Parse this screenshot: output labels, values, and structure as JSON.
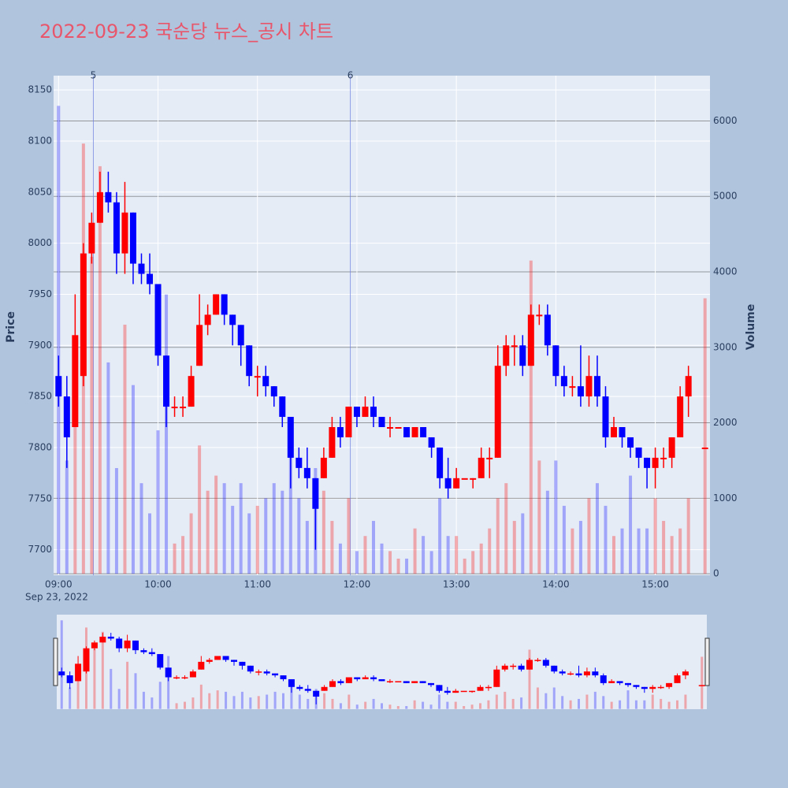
{
  "chart_data": {
    "type": "candlestick",
    "title": "2022-09-23 국순당 뉴스_공시 차트",
    "y_label": "Price",
    "y2_label": "Volume",
    "x_date_label": "Sep 23, 2022",
    "up_color": "#ff0000",
    "down_color": "#0000ff",
    "xlim": [
      "2022-09-23 08:57",
      "2022-09-23 15:33"
    ],
    "xticks": [
      {
        "value": "2022-09-23 09:00",
        "label": "09:00"
      },
      {
        "value": "2022-09-23 10:00",
        "label": "10:00"
      },
      {
        "value": "2022-09-23 11:00",
        "label": "11:00"
      },
      {
        "value": "2022-09-23 12:00",
        "label": "12:00"
      },
      {
        "value": "2022-09-23 13:00",
        "label": "13:00"
      },
      {
        "value": "2022-09-23 14:00",
        "label": "14:00"
      },
      {
        "value": "2022-09-23 15:00",
        "label": "15:00"
      }
    ],
    "ylim": [
      7675,
      8164
    ],
    "yticks": [
      7700,
      7750,
      7800,
      7850,
      7900,
      7950,
      8000,
      8050,
      8100,
      8150
    ],
    "y2lim": [
      -20,
      6600
    ],
    "y2ticks": [
      0,
      1000,
      2000,
      3000,
      4000,
      5000,
      6000
    ],
    "grid": true,
    "events": [
      {
        "x": "2022-09-23 09:21",
        "label": "5"
      },
      {
        "x": "2022-09-23 11:56",
        "label": "6"
      }
    ],
    "x": [
      "2022-09-23 09:00",
      "2022-09-23 09:05",
      "2022-09-23 09:10",
      "2022-09-23 09:15",
      "2022-09-23 09:20",
      "2022-09-23 09:25",
      "2022-09-23 09:30",
      "2022-09-23 09:35",
      "2022-09-23 09:40",
      "2022-09-23 09:45",
      "2022-09-23 09:50",
      "2022-09-23 09:55",
      "2022-09-23 10:00",
      "2022-09-23 10:05",
      "2022-09-23 10:10",
      "2022-09-23 10:15",
      "2022-09-23 10:20",
      "2022-09-23 10:25",
      "2022-09-23 10:30",
      "2022-09-23 10:35",
      "2022-09-23 10:40",
      "2022-09-23 10:45",
      "2022-09-23 10:50",
      "2022-09-23 10:55",
      "2022-09-23 11:00",
      "2022-09-23 11:05",
      "2022-09-23 11:10",
      "2022-09-23 11:15",
      "2022-09-23 11:20",
      "2022-09-23 11:25",
      "2022-09-23 11:30",
      "2022-09-23 11:35",
      "2022-09-23 11:40",
      "2022-09-23 11:45",
      "2022-09-23 11:50",
      "2022-09-23 11:55",
      "2022-09-23 12:00",
      "2022-09-23 12:05",
      "2022-09-23 12:10",
      "2022-09-23 12:15",
      "2022-09-23 12:20",
      "2022-09-23 12:25",
      "2022-09-23 12:30",
      "2022-09-23 12:35",
      "2022-09-23 12:40",
      "2022-09-23 12:45",
      "2022-09-23 12:50",
      "2022-09-23 12:55",
      "2022-09-23 13:00",
      "2022-09-23 13:05",
      "2022-09-23 13:10",
      "2022-09-23 13:15",
      "2022-09-23 13:20",
      "2022-09-23 13:25",
      "2022-09-23 13:30",
      "2022-09-23 13:35",
      "2022-09-23 13:40",
      "2022-09-23 13:45",
      "2022-09-23 13:50",
      "2022-09-23 13:55",
      "2022-09-23 14:00",
      "2022-09-23 14:05",
      "2022-09-23 14:10",
      "2022-09-23 14:15",
      "2022-09-23 14:20",
      "2022-09-23 14:25",
      "2022-09-23 14:30",
      "2022-09-23 14:35",
      "2022-09-23 14:40",
      "2022-09-23 14:45",
      "2022-09-23 14:50",
      "2022-09-23 14:55",
      "2022-09-23 15:00",
      "2022-09-23 15:05",
      "2022-09-23 15:10",
      "2022-09-23 15:15",
      "2022-09-23 15:20",
      "2022-09-23 15:30"
    ],
    "open": [
      7870,
      7850,
      7820,
      7870,
      7990,
      8020,
      8050,
      8040,
      7990,
      8030,
      7980,
      7970,
      7960,
      7890,
      7840,
      7840,
      7840,
      7880,
      7920,
      7930,
      7950,
      7930,
      7920,
      7900,
      7870,
      7870,
      7860,
      7850,
      7830,
      7790,
      7780,
      7770,
      7770,
      7790,
      7820,
      7810,
      7840,
      7830,
      7840,
      7830,
      7820,
      7820,
      7820,
      7810,
      7820,
      7810,
      7800,
      7770,
      7760,
      7770,
      7770,
      7770,
      7790,
      7790,
      7880,
      7900,
      7900,
      7880,
      7930,
      7930,
      7900,
      7870,
      7860,
      7860,
      7850,
      7870,
      7850,
      7810,
      7820,
      7810,
      7800,
      7790,
      7780,
      7790,
      7790,
      7810,
      7850,
      7800
    ],
    "high": [
      7890,
      7870,
      7950,
      8000,
      8030,
      8070,
      8070,
      8050,
      8060,
      8030,
      7990,
      7990,
      7960,
      7890,
      7850,
      7850,
      7880,
      7950,
      7940,
      7950,
      7950,
      7930,
      7920,
      7900,
      7880,
      7880,
      7860,
      7850,
      7830,
      7800,
      7800,
      7770,
      7800,
      7830,
      7830,
      7840,
      7840,
      7850,
      7850,
      7830,
      7830,
      7820,
      7820,
      7820,
      7820,
      7810,
      7800,
      7790,
      7780,
      7770,
      7770,
      7800,
      7800,
      7900,
      7910,
      7910,
      7910,
      7940,
      7940,
      7940,
      7900,
      7880,
      7870,
      7900,
      7890,
      7890,
      7860,
      7830,
      7820,
      7810,
      7800,
      7790,
      7800,
      7800,
      7810,
      7860,
      7880,
      7800
    ],
    "low": [
      7840,
      7780,
      7820,
      7860,
      7980,
      8020,
      8030,
      7970,
      7970,
      7960,
      7960,
      7950,
      7880,
      7820,
      7830,
      7830,
      7840,
      7880,
      7910,
      7930,
      7920,
      7900,
      7880,
      7860,
      7850,
      7850,
      7840,
      7820,
      7760,
      7770,
      7760,
      7700,
      7770,
      7790,
      7800,
      7810,
      7820,
      7830,
      7820,
      7820,
      7810,
      7820,
      7810,
      7810,
      7810,
      7790,
      7760,
      7750,
      7760,
      7770,
      7760,
      7770,
      7770,
      7790,
      7870,
      7880,
      7870,
      7880,
      7920,
      7890,
      7860,
      7850,
      7850,
      7840,
      7840,
      7840,
      7800,
      7810,
      7800,
      7790,
      7780,
      7760,
      7760,
      7780,
      7780,
      7810,
      7830,
      7800
    ],
    "close": [
      7850,
      7810,
      7910,
      7990,
      8020,
      8050,
      8040,
      7990,
      8030,
      7980,
      7970,
      7960,
      7890,
      7840,
      7840,
      7840,
      7870,
      7920,
      7930,
      7950,
      7930,
      7920,
      7900,
      7870,
      7870,
      7860,
      7850,
      7830,
      7790,
      7780,
      7770,
      7740,
      7790,
      7820,
      7810,
      7840,
      7830,
      7840,
      7830,
      7820,
      7820,
      7820,
      7810,
      7820,
      7810,
      7800,
      7770,
      7760,
      7770,
      7770,
      7770,
      7790,
      7790,
      7880,
      7900,
      7900,
      7880,
      7930,
      7930,
      7900,
      7870,
      7860,
      7860,
      7850,
      7870,
      7850,
      7810,
      7820,
      7810,
      7800,
      7790,
      7780,
      7790,
      7790,
      7810,
      7850,
      7870,
      7800
    ],
    "volume": [
      6200,
      1500,
      3000,
      5700,
      4200,
      5400,
      2800,
      1400,
      3300,
      2500,
      1200,
      800,
      1900,
      3700,
      400,
      500,
      800,
      1700,
      1100,
      1300,
      1200,
      900,
      1200,
      800,
      900,
      1000,
      1200,
      1100,
      1800,
      1000,
      700,
      1400,
      1100,
      700,
      400,
      1000,
      300,
      500,
      700,
      400,
      300,
      200,
      200,
      600,
      500,
      300,
      1000,
      500,
      500,
      200,
      300,
      400,
      600,
      1000,
      1200,
      700,
      800,
      4150,
      1500,
      1100,
      1500,
      900,
      600,
      700,
      1000,
      1200,
      900,
      500,
      600,
      1300,
      600,
      600,
      1000,
      700,
      500,
      600,
      1000,
      3650
    ]
  }
}
